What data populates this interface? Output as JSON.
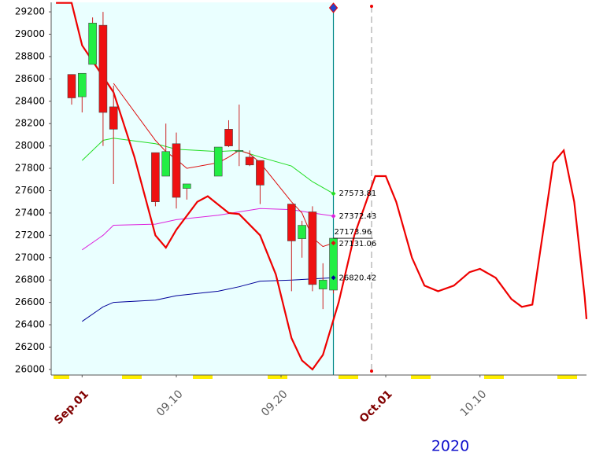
{
  "chart_data": {
    "type": "candlestick",
    "x_label": "2020",
    "xlim": [
      -1.955,
      49.17
    ],
    "ylim": [
      25950,
      29285
    ],
    "yticks": [
      26000,
      26200,
      26400,
      26600,
      26800,
      27000,
      27200,
      27400,
      27600,
      27800,
      28000,
      28200,
      28400,
      28600,
      28800,
      29000,
      29200
    ],
    "xticks": [
      {
        "value": 1,
        "label": "Sep.01",
        "color": "#800000"
      },
      {
        "value": 10,
        "label": "09.10",
        "color": "#606060"
      },
      {
        "value": 20,
        "label": "09.20",
        "color": "#606060"
      },
      {
        "value": 30,
        "label": "Oct.01",
        "color": "#800000"
      },
      {
        "value": 39,
        "label": "10.10",
        "color": "#606060"
      }
    ],
    "up_color": "#22ee44",
    "down_color": "#ee1111",
    "x": [
      0,
      1,
      2,
      3,
      4,
      8,
      9,
      10,
      11,
      14,
      15,
      16,
      17,
      18,
      21,
      22,
      23,
      24,
      25
    ],
    "open": [
      28640,
      28440,
      28730,
      29080,
      28350,
      27940,
      27730,
      28020,
      27620,
      27730,
      28150,
      27950,
      27900,
      27870,
      27480,
      27170,
      27410,
      26720,
      26710
    ],
    "high": [
      28640,
      28650,
      29150,
      29200,
      28540,
      27940,
      28200,
      28120,
      27660,
      27990,
      28230,
      28370,
      27960,
      27870,
      27480,
      27330,
      27460,
      26950,
      27180
    ],
    "low": [
      28370,
      28300,
      28730,
      28000,
      27660,
      27460,
      27730,
      27440,
      27520,
      27730,
      27990,
      27820,
      27820,
      27480,
      26700,
      27000,
      26700,
      26540,
      26680
    ],
    "close": [
      28430,
      28650,
      29100,
      28300,
      28150,
      27500,
      27950,
      27540,
      27660,
      27990,
      28000,
      27960,
      27830,
      27650,
      27150,
      27290,
      26760,
      26800,
      27173.96
    ],
    "lines": [
      {
        "color": "#22dd22",
        "x": [
          1,
          3,
          4,
          8,
          10,
          14,
          16,
          18,
          21,
          23,
          25
        ],
        "values": [
          27870,
          28050,
          28070,
          28020,
          27970,
          27950,
          27960,
          27900,
          27820,
          27680,
          27573.81
        ]
      },
      {
        "color": "#dd22dd",
        "x": [
          1,
          3,
          4,
          8,
          10,
          14,
          16,
          18,
          21,
          23,
          25
        ],
        "values": [
          27070,
          27200,
          27290,
          27300,
          27340,
          27380,
          27410,
          27440,
          27430,
          27400,
          27372.43
        ]
      },
      {
        "color": "#dd1111",
        "x": [
          4,
          8,
          9,
          10,
          11,
          14,
          15,
          16,
          17,
          18,
          21,
          22,
          23,
          24,
          25
        ],
        "values": [
          28560,
          28050,
          27950,
          27880,
          27800,
          27850,
          27900,
          27960,
          27930,
          27850,
          27500,
          27400,
          27180,
          27100,
          27131.06
        ]
      },
      {
        "color": "#000099",
        "x": [
          1,
          3,
          4,
          8,
          10,
          14,
          16,
          18,
          21,
          23,
          25
        ],
        "values": [
          26430,
          26560,
          26600,
          26620,
          26660,
          26700,
          26740,
          26790,
          26800,
          26810,
          26820.42
        ]
      },
      {
        "color": "#ee0000",
        "width": 2.2,
        "x": [
          -1.5,
          0,
          1,
          4,
          6,
          8,
          9,
          10,
          12,
          13,
          15,
          16,
          18,
          19.5,
          21,
          22,
          23,
          24,
          25.5,
          27,
          29,
          30,
          31,
          32.5,
          33.7,
          35,
          36.5,
          38,
          39,
          40.5,
          42,
          43,
          44,
          46,
          47,
          48,
          49,
          49.17
        ],
        "values": [
          29280,
          29280,
          28900,
          28480,
          27900,
          27200,
          27090,
          27250,
          27500,
          27550,
          27400,
          27390,
          27200,
          26850,
          26280,
          26080,
          26000,
          26130,
          26600,
          27200,
          27730,
          27730,
          27500,
          27000,
          26750,
          26700,
          26750,
          26870,
          26900,
          26820,
          26630,
          26560,
          26580,
          27850,
          27960,
          27500,
          26650,
          26450
        ]
      }
    ]
  }
}
